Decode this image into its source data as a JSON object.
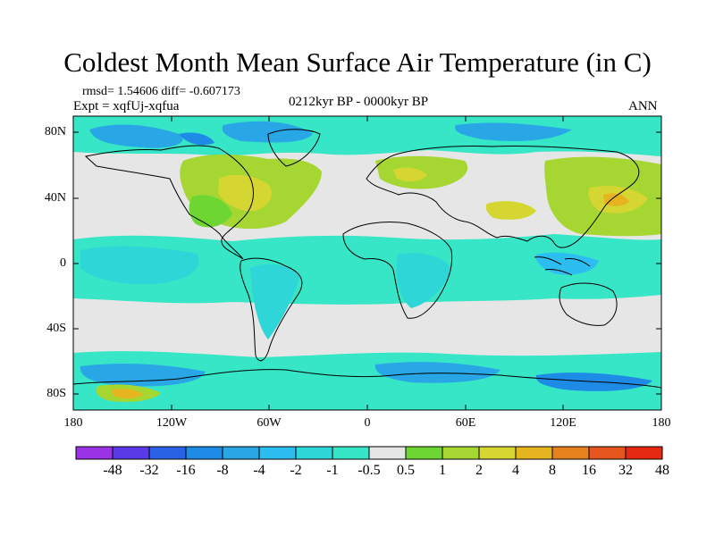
{
  "title": "Coldest Month Mean Surface Air Temperature (in C)",
  "stats": "rmsd= 1.54606 diff= -0.607173",
  "experiment": "Expt = xqfUj-xqfua",
  "period": "0212kyr BP - 0000kyr BP",
  "season": "ANN",
  "lat_labels": [
    "80N",
    "40N",
    "0",
    "40S",
    "80S"
  ],
  "lon_labels": [
    "180",
    "120W",
    "60W",
    "0",
    "60E",
    "120E",
    "180"
  ],
  "colorbar": {
    "labels": [
      "-48",
      "-32",
      "-16",
      "-8",
      "-4",
      "-2",
      "-1",
      "-0.5",
      "0.5",
      "1",
      "2",
      "4",
      "8",
      "16",
      "32",
      "48"
    ],
    "colors": [
      "#9a32e6",
      "#5a3ae6",
      "#2a62e6",
      "#1e8ce6",
      "#28a6e6",
      "#2cbef0",
      "#2ed6d8",
      "#36e6c6",
      "#e6e6e6",
      "#6ed632",
      "#a6d632",
      "#d6d632",
      "#e6b41e",
      "#e6821e",
      "#e6561e",
      "#e62a12"
    ]
  },
  "regions": [
    {
      "name": "north-atlantic-warm",
      "color": "#a6d632"
    },
    {
      "name": "east-asia-warm",
      "color": "#a6d632"
    },
    {
      "name": "arctic-cool",
      "color": "#28a6e6"
    },
    {
      "name": "southern-ocean-cool",
      "color": "#28a6e6"
    },
    {
      "name": "tropical-cool",
      "color": "#36e6c6"
    },
    {
      "name": "neutral",
      "color": "#e6e6e6"
    }
  ]
}
